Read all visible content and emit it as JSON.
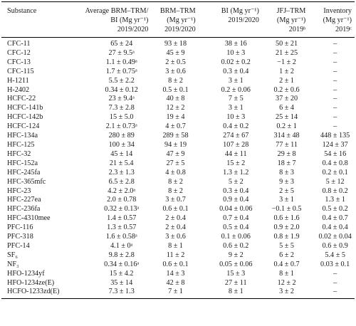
{
  "table": {
    "headers": [
      {
        "lines": [
          "Substance"
        ]
      },
      {
        "lines": [
          "Average BRM–TRM/",
          "BI (Mg yr⁻¹)",
          "2019/2020"
        ]
      },
      {
        "lines": [
          "BRM–TRM",
          "(Mg yr⁻¹)",
          "2019/2020"
        ]
      },
      {
        "lines": [
          "BI (Mg yr⁻¹)",
          "2019/2020"
        ]
      },
      {
        "lines": [
          "JFJ–TRM",
          "(Mg yr⁻¹)",
          "2019ᵇ"
        ]
      },
      {
        "lines": [
          "Inventory",
          "(Mg yr⁻¹)",
          "2019ᶜ"
        ]
      }
    ],
    "rows": [
      [
        "CFC-11",
        "65 ± 24",
        "93 ± 18",
        "38 ± 16",
        "50 ± 21",
        "–"
      ],
      [
        "CFC-12",
        "27 ± 9.5ᵃ",
        "45 ± 9",
        "10 ± 3",
        "21 ± 25",
        "–"
      ],
      [
        "CFC-13",
        "1.1 ± 0.49ᵃ",
        "2 ± 0.5",
        "0.02 ± 0.2",
        "−1 ± 2",
        "–"
      ],
      [
        "CFC-115",
        "1.7 ± 0.75ᵃ",
        "3 ± 0.6",
        "0.3 ± 0.4",
        "1 ± 2",
        "–"
      ],
      [
        "H-1211",
        "5.5 ± 2.2",
        "8 ± 2",
        "3 ± 1",
        "2 ± 1",
        "–"
      ],
      [
        "H-2402",
        "0.34 ± 0.12",
        "0.5 ± 0.1",
        "0.2 ± 0.06",
        "0.2 ± 0.6",
        "–"
      ],
      [
        "HCFC-22",
        "23 ± 9.4ᵃ",
        "40 ± 8",
        "7 ± 5",
        "37 ± 20",
        "–"
      ],
      [
        "HCFC-141b",
        "7.3 ± 2.8",
        "12 ± 2",
        "3 ± 1",
        "6 ± 4",
        "–"
      ],
      [
        "HCFC-142b",
        "15 ± 5.0",
        "19 ± 4",
        "10 ± 3",
        "25 ± 14",
        "–"
      ],
      [
        "HCFC-124",
        "2.1 ± 0.73ᵃ",
        "4 ± 0.7",
        "0.4 ± 0.2",
        "0.2 ± 1",
        "–"
      ],
      [
        "HFC-134a",
        "280 ± 89",
        "289 ± 58",
        "274 ± 67",
        "314 ± 48",
        "448 ± 135"
      ],
      [
        "HFC-125",
        "100 ± 34",
        "94 ± 19",
        "107 ± 28",
        "77 ± 11",
        "124 ± 37"
      ],
      [
        "HFC-32",
        "45 ± 14",
        "47 ± 9",
        "44 ± 11",
        "29 ± 8",
        "54 ± 16"
      ],
      [
        "HFC-152a",
        "21 ± 5.4",
        "27 ± 5",
        "15 ± 2",
        "18 ± 7",
        "0.4 ± 0.8"
      ],
      [
        "HFC-245fa",
        "2.3 ± 1.3",
        "4 ± 0.8",
        "1.3 ± 1.2",
        "8 ± 3",
        "0.2 ± 0.1"
      ],
      [
        "HFC-365mfc",
        "6.5 ± 2.8",
        "8 ± 2",
        "5 ± 2",
        "9 ± 3",
        "5 ± 12"
      ],
      [
        "HFC-23",
        "4.2 ± 2.0ᵃ",
        "8 ± 2",
        "0.3 ± 0.4",
        "2 ± 5",
        "0.8 ± 0.2"
      ],
      [
        "HFC-227ea",
        "2.0 ± 0.78",
        "3 ± 0.7",
        "0.9 ± 0.4",
        "3 ± 1",
        "1.3 ± 1"
      ],
      [
        "HFC-236fa",
        "0.32 ± 0.13ᵃ",
        "0.6 ± 0.1",
        "0.04 ± 0.06",
        "−0.1 ± 0.5",
        "0.5 ± 0.2"
      ],
      [
        "HFC-4310mee",
        "1.4 ± 0.57",
        "2 ± 0.4",
        "0.7 ± 0.4",
        "0.6 ± 1.6",
        "0.4 ± 0.7"
      ],
      [
        "PFC-116",
        "1.3 ± 0.57",
        "2 ± 0.4",
        "0.5 ± 0.4",
        "0.9 ± 2.0",
        "0.4 ± 0.4"
      ],
      [
        "PFC-318",
        "1.6 ± 0.58ᵃ",
        "3 ± 0.6",
        "0.1 ± 0.06",
        "0.8 ± 1.9",
        "0.02 ± 0.04"
      ],
      [
        "PFC-14",
        "4.1 ± 0ᵃ",
        "8 ± 1",
        "0.6 ± 0.2",
        "5 ± 5",
        "0.6 ± 0.9"
      ],
      [
        "SF₆",
        "9.8 ± 2.8",
        "11 ± 2",
        "9 ± 2",
        "6 ± 2",
        "5.4 ± 5"
      ],
      [
        "NF₃",
        "0.34 ± 0.16ᵃ",
        "0.6 ± 0.1",
        "0.05 ± 0.06",
        "0.4 ± 0.7",
        "0.03 ± 0.1"
      ],
      [
        "HFO-1234yf",
        "15 ± 4.2",
        "14 ± 3",
        "15 ± 3",
        "8 ± 1",
        "–"
      ],
      [
        "HFO-1234ze(E)",
        "35 ± 14",
        "42 ± 8",
        "27 ± 11",
        "12 ± 2",
        "–"
      ],
      [
        "HCFO-1233zd(E)",
        "7.3 ± 1.3",
        "7 ± 1",
        "8 ± 1",
        "3 ± 2",
        "–"
      ]
    ]
  }
}
